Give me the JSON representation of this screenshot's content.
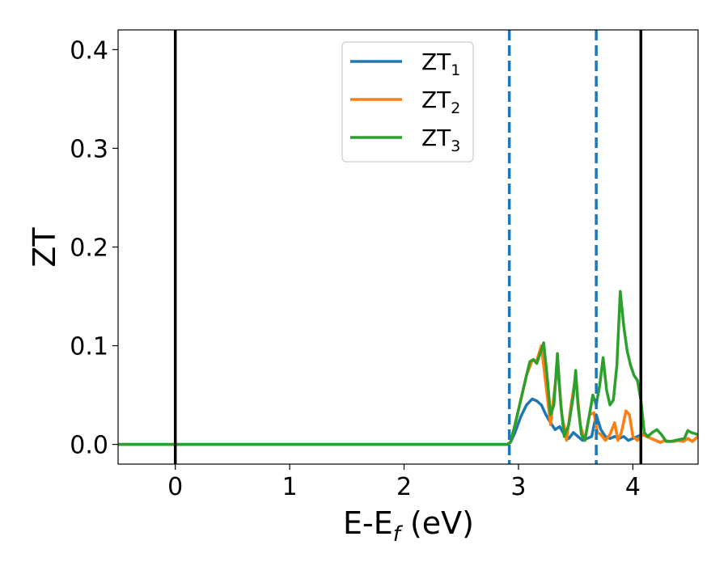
{
  "chart_data": {
    "type": "line",
    "title": "",
    "xlabel": {
      "base": "E-E",
      "sub": "f",
      "unit": " (eV)"
    },
    "ylabel": "ZT",
    "xlim": [
      -0.5,
      4.57
    ],
    "ylim": [
      -0.02,
      0.42
    ],
    "xticks": [
      0,
      1,
      2,
      3,
      4
    ],
    "xtick_labels": [
      "0",
      "1",
      "2",
      "3",
      "4"
    ],
    "yticks": [
      0.0,
      0.1,
      0.2,
      0.3,
      0.4
    ],
    "ytick_labels": [
      "0.0",
      "0.1",
      "0.2",
      "0.3",
      "0.4"
    ],
    "grid": false,
    "legend_position": "top-center",
    "vlines": [
      {
        "x": 0.0,
        "style": "solid",
        "color": "#000000"
      },
      {
        "x": 4.07,
        "style": "solid",
        "color": "#000000"
      },
      {
        "x": 2.92,
        "style": "dashed",
        "color": "#1f77b4"
      },
      {
        "x": 3.68,
        "style": "dashed",
        "color": "#1f77b4"
      }
    ],
    "series": [
      {
        "name": "ZT",
        "sub": "1",
        "color": "#1f77b4",
        "x": [
          -0.5,
          2.9,
          2.93,
          2.97,
          3.02,
          3.07,
          3.12,
          3.16,
          3.2,
          3.24,
          3.28,
          3.32,
          3.36,
          3.4,
          3.44,
          3.48,
          3.52,
          3.56,
          3.6,
          3.64,
          3.68,
          3.72,
          3.76,
          3.8,
          3.84,
          3.88,
          3.92,
          3.96,
          4.0,
          4.04,
          4.08,
          4.12,
          4.16,
          4.2,
          4.24,
          4.28,
          4.32,
          4.36,
          4.4,
          4.44,
          4.48,
          4.52,
          4.57
        ],
        "y": [
          0.0,
          0.0,
          0.002,
          0.012,
          0.028,
          0.04,
          0.046,
          0.044,
          0.04,
          0.03,
          0.022,
          0.015,
          0.018,
          0.01,
          0.006,
          0.012,
          0.008,
          0.004,
          0.006,
          0.008,
          0.03,
          0.015,
          0.008,
          0.006,
          0.008,
          0.006,
          0.008,
          0.004,
          0.006,
          0.008,
          0.01,
          0.008,
          0.006,
          0.004,
          0.002,
          0.004,
          0.003,
          0.003,
          0.004,
          0.003,
          0.006,
          0.003,
          0.008
        ]
      },
      {
        "name": "ZT",
        "sub": "2",
        "color": "#ff7f0e",
        "x": [
          -0.5,
          2.9,
          2.93,
          2.97,
          3.02,
          3.07,
          3.12,
          3.16,
          3.2,
          3.24,
          3.28,
          3.31,
          3.34,
          3.38,
          3.42,
          3.46,
          3.5,
          3.54,
          3.58,
          3.62,
          3.66,
          3.69,
          3.72,
          3.76,
          3.8,
          3.84,
          3.87,
          3.9,
          3.94,
          3.97,
          4.0,
          4.04,
          4.08,
          4.12,
          4.16,
          4.2,
          4.24,
          4.28,
          4.32,
          4.36,
          4.4,
          4.44,
          4.48,
          4.52,
          4.57
        ],
        "y": [
          0.0,
          0.0,
          0.002,
          0.02,
          0.045,
          0.07,
          0.085,
          0.085,
          0.1,
          0.06,
          0.02,
          0.05,
          0.08,
          0.03,
          0.004,
          0.04,
          0.07,
          0.02,
          0.004,
          0.03,
          0.032,
          0.012,
          0.01,
          0.004,
          0.01,
          0.022,
          0.004,
          0.012,
          0.034,
          0.03,
          0.008,
          0.004,
          0.01,
          0.008,
          0.006,
          0.004,
          0.002,
          0.004,
          0.003,
          0.003,
          0.004,
          0.003,
          0.006,
          0.003,
          0.008
        ]
      },
      {
        "name": "ZT",
        "sub": "3",
        "color": "#2ca02c",
        "x": [
          -0.5,
          2.9,
          2.93,
          2.97,
          3.02,
          3.07,
          3.1,
          3.13,
          3.16,
          3.19,
          3.22,
          3.25,
          3.28,
          3.31,
          3.34,
          3.37,
          3.4,
          3.44,
          3.48,
          3.5,
          3.52,
          3.55,
          3.58,
          3.62,
          3.65,
          3.68,
          3.71,
          3.74,
          3.77,
          3.8,
          3.83,
          3.86,
          3.89,
          3.92,
          3.95,
          3.98,
          4.01,
          4.04,
          4.07,
          4.1,
          4.13,
          4.17,
          4.21,
          4.25,
          4.29,
          4.33,
          4.37,
          4.41,
          4.45,
          4.48,
          4.51,
          4.57
        ],
        "y": [
          0.0,
          0.0,
          0.002,
          0.02,
          0.045,
          0.07,
          0.084,
          0.086,
          0.082,
          0.092,
          0.103,
          0.07,
          0.03,
          0.04,
          0.092,
          0.04,
          0.008,
          0.02,
          0.05,
          0.075,
          0.04,
          0.01,
          0.004,
          0.03,
          0.05,
          0.04,
          0.06,
          0.088,
          0.055,
          0.04,
          0.045,
          0.08,
          0.155,
          0.12,
          0.095,
          0.08,
          0.07,
          0.065,
          0.045,
          0.012,
          0.008,
          0.012,
          0.015,
          0.01,
          0.003,
          0.003,
          0.004,
          0.005,
          0.006,
          0.014,
          0.012,
          0.01
        ]
      }
    ]
  }
}
